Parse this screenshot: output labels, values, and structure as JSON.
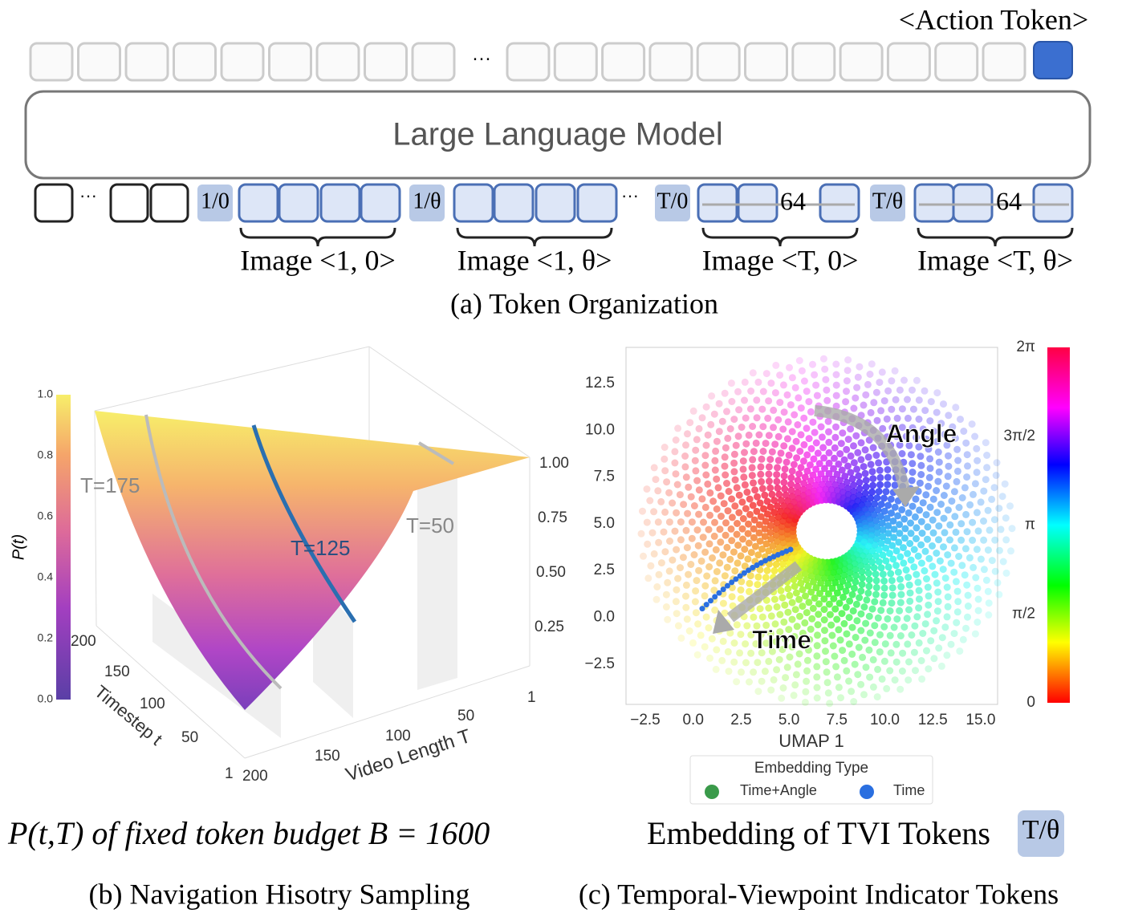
{
  "token_org": {
    "action_token": "<Action Token>",
    "ellipsis": "···",
    "llm": "Large Language Model",
    "indicators": [
      "1/0",
      "1/θ",
      "T/0",
      "T/θ"
    ],
    "count": "64",
    "images": [
      "Image <1, 0>",
      "Image <1, θ>",
      "Image <T, 0>",
      "Image <T, θ>"
    ],
    "caption": "(a) Token Organization"
  },
  "sampling": {
    "colorbar_ticks": [
      "0.0",
      "0.2",
      "0.4",
      "0.6",
      "0.8",
      "1.0"
    ],
    "colorbar_label": "P(t)",
    "curve_labels": [
      "T=175",
      "T=125",
      "T=50"
    ],
    "z_ticks": [
      "1.00",
      "0.75",
      "0.50",
      "0.25"
    ],
    "timestep_ticks": [
      "200",
      "150",
      "100",
      "50",
      "1"
    ],
    "timestep_label": "Timestep t",
    "length_ticks": [
      "200",
      "150",
      "100",
      "50",
      "1"
    ],
    "length_label": "Video Length T",
    "title": "P(t,T) of fixed token budget B = 1600",
    "caption": "(b) Navigation Hisotry Sampling"
  },
  "embedding": {
    "yticks": [
      "12.5",
      "10.0",
      "7.5",
      "5.0",
      "2.5",
      "0.0",
      "−2.5"
    ],
    "xticks": [
      "−2.5",
      "0.0",
      "2.5",
      "5.0",
      "7.5",
      "10.0",
      "12.5",
      "15.0"
    ],
    "xlabel": "UMAP 1",
    "annotations": [
      "Angle",
      "Time"
    ],
    "colorbar_ticks": [
      "2π",
      "3π/2",
      "π",
      "π/2",
      "0"
    ],
    "legend_title": "Embedding Type",
    "legend": [
      "Time+Angle",
      "Time"
    ],
    "title": "Embedding of TVI Tokens",
    "badge": "T/θ",
    "caption": "(c) Temporal-Viewpoint Indicator Tokens"
  }
}
